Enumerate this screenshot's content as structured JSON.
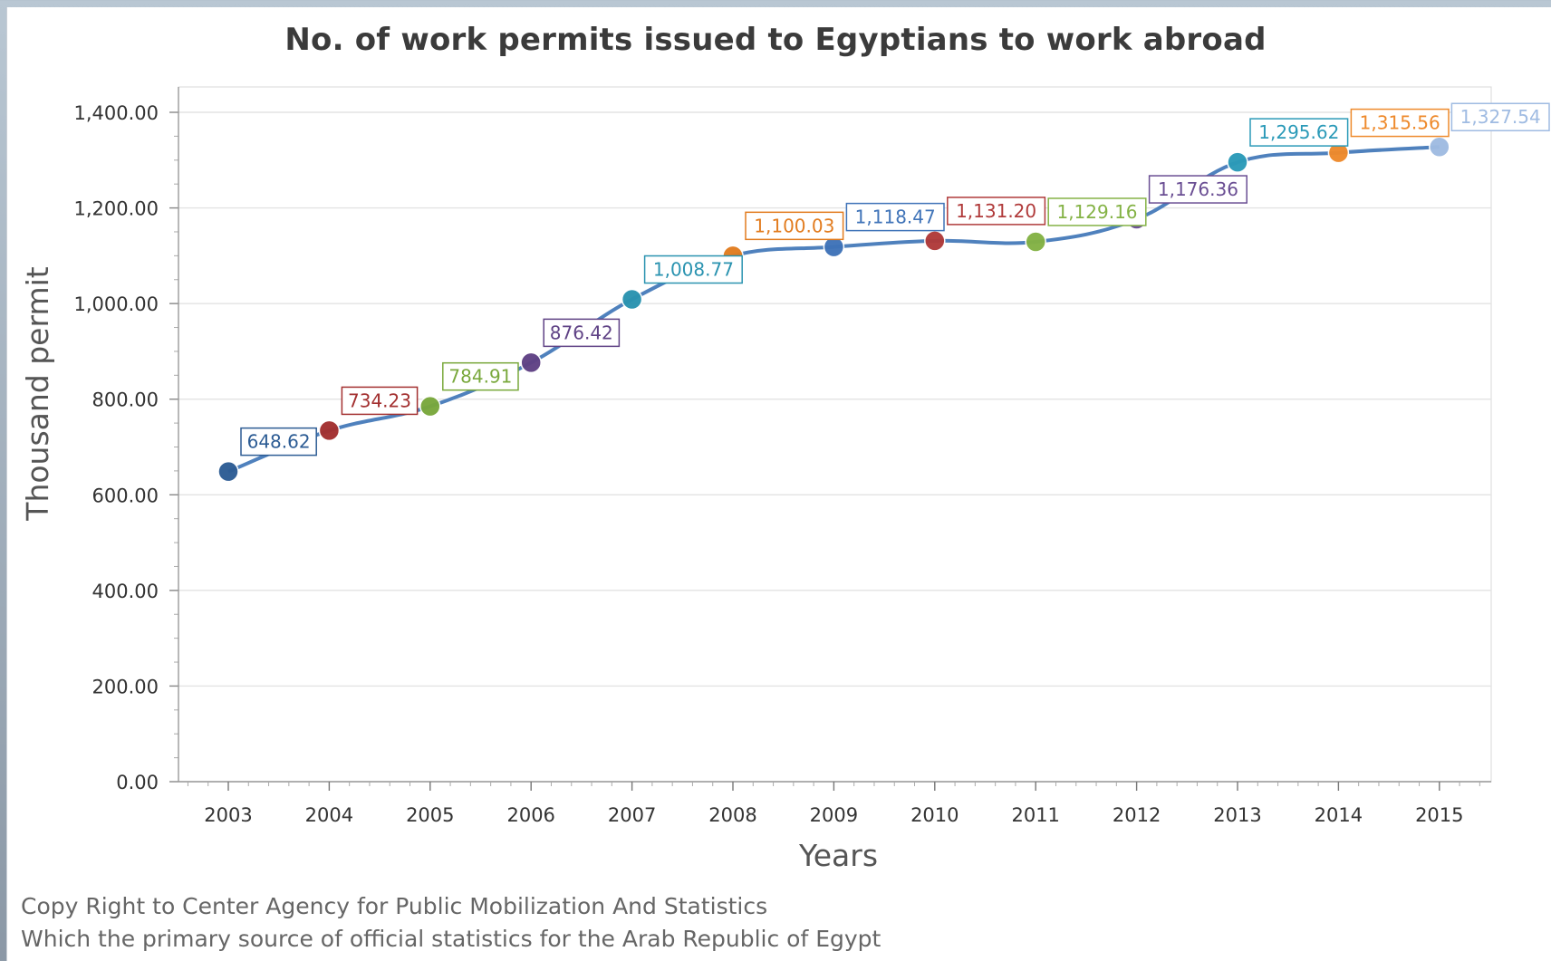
{
  "page": {
    "footer_line1": "Copy Right to Center Agency for Public Mobilization And Statistics",
    "footer_line2": "Which the primary source of official statistics for the Arab Republic of Egypt"
  },
  "chart_data": {
    "type": "line",
    "title": "No. of work permits issued to Egyptians to work abroad",
    "xlabel": "Years",
    "ylabel": "Thousand permit",
    "ylim": [
      0,
      1400
    ],
    "yticks": [
      "0.00",
      "200.00",
      "400.00",
      "600.00",
      "800.00",
      "1,000.00",
      "1,200.00",
      "1,400.00"
    ],
    "grid": true,
    "legend": "none",
    "categories": [
      "2003",
      "2004",
      "2005",
      "2006",
      "2007",
      "2008",
      "2009",
      "2010",
      "2011",
      "2012",
      "2013",
      "2014",
      "2015"
    ],
    "values": [
      648.62,
      734.23,
      784.91,
      876.42,
      1008.77,
      1100.03,
      1118.47,
      1131.2,
      1129.16,
      1176.36,
      1295.62,
      1315.56,
      1327.54
    ],
    "data_labels": [
      "648.62",
      "734.23",
      "784.91",
      "876.42",
      "1,008.77",
      "1,100.03",
      "1,118.47",
      "1,131.20",
      "1,129.16",
      "1,176.36",
      "1,295.62",
      "1,315.56",
      "1,327.54"
    ],
    "colors": {
      "line": "#4f81bd",
      "points": [
        "#2d5c94",
        "#a33030",
        "#79a83c",
        "#5f4285",
        "#2a93b0",
        "#e27c1f",
        "#3f73b8",
        "#b03a3a",
        "#84b245",
        "#6a4e93",
        "#2b9ab8",
        "#ee8a2c",
        "#9fbbe2"
      ]
    }
  }
}
